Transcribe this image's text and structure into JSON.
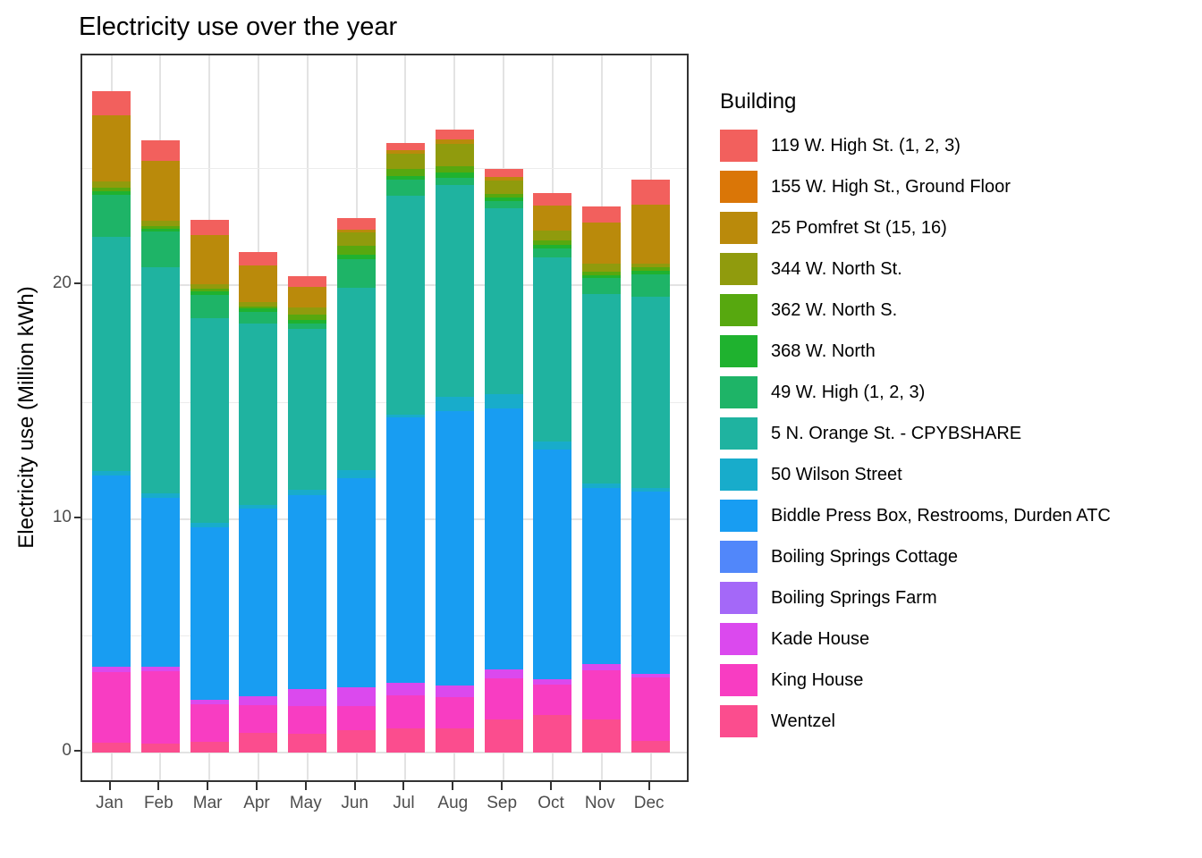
{
  "title": "Electricity use over the year",
  "y_axis_title": "Electricity use (Million kWh)",
  "legend_title": "Building",
  "chart_data": {
    "type": "bar",
    "stacked": true,
    "title": "Electricity use over the year",
    "xlabel": "",
    "ylabel": "Electricity use (Million kWh)",
    "units": "Million kWh",
    "categories": [
      "Jan",
      "Feb",
      "Mar",
      "Apr",
      "May",
      "Jun",
      "Jul",
      "Aug",
      "Sep",
      "Oct",
      "Nov",
      "Dec"
    ],
    "yticks": [
      0,
      10,
      20
    ],
    "yminor": [
      5,
      15,
      25
    ],
    "ylim": [
      -1.3,
      29.8
    ],
    "grid": true,
    "legend_position": "right",
    "legend_title": "Building",
    "stack_order": "series listed top-of-stack first; bars stack bottom-to-top in reverse order",
    "totals": [
      28.3,
      26.21,
      22.78,
      21.42,
      20.37,
      22.88,
      26.09,
      26.64,
      24.98,
      23.93,
      23.37,
      24.5
    ],
    "series": [
      {
        "name": "119 W. High St. (1, 2, 3)",
        "color": "#F2605D",
        "values": [
          1.04,
          0.89,
          0.65,
          0.59,
          0.46,
          0.52,
          0.3,
          0.42,
          0.34,
          0.54,
          0.68,
          1.05
        ]
      },
      {
        "name": "155 W. High St., Ground Floor",
        "color": "#DA7607",
        "values": [
          0,
          0,
          0,
          0,
          0,
          0,
          0,
          0,
          0,
          0,
          0,
          0
        ]
      },
      {
        "name": "25 Pomfret St (15, 16)",
        "color": "#BA8A0B",
        "values": [
          2.82,
          2.55,
          2.1,
          1.56,
          0.85,
          0.11,
          0.17,
          0.18,
          0.17,
          1.06,
          1.78,
          2.52
        ]
      },
      {
        "name": "344 W. North St.",
        "color": "#909B0D",
        "values": [
          0.28,
          0.26,
          0.2,
          0.17,
          0.32,
          0.57,
          0.63,
          0.97,
          0.57,
          0.43,
          0.33,
          0.18
        ]
      },
      {
        "name": "362 W. North S.",
        "color": "#57A80F",
        "values": [
          0.15,
          0.1,
          0.1,
          0.1,
          0.23,
          0.38,
          0.32,
          0.25,
          0.17,
          0.17,
          0.16,
          0.13
        ]
      },
      {
        "name": "368 W. North",
        "color": "#1FB22F",
        "values": [
          0.16,
          0.13,
          0.16,
          0.16,
          0.15,
          0.19,
          0.16,
          0.22,
          0.15,
          0.16,
          0.13,
          0.16
        ]
      },
      {
        "name": "49 W. High (1, 2, 3)",
        "color": "#1EB467",
        "values": [
          1.78,
          1.5,
          0.98,
          0.48,
          0.23,
          1.22,
          0.68,
          0.32,
          0.28,
          0.38,
          0.66,
          0.96
        ]
      },
      {
        "name": "5 N. Orange St. - CPYBSHARE",
        "color": "#1FB3A0",
        "values": [
          10.03,
          9.69,
          8.75,
          7.76,
          6.89,
          7.81,
          9.37,
          9.05,
          7.98,
          7.87,
          8.13,
          8.19
        ]
      },
      {
        "name": "50 Wilson Street",
        "color": "#18ACCB",
        "values": [
          0.19,
          0.19,
          0.22,
          0.17,
          0.21,
          0.35,
          0.12,
          0.61,
          0.6,
          0.34,
          0.18,
          0.15
        ]
      },
      {
        "name": "Biddle Press Box, Restrooms, Durden ATC",
        "color": "#189DF2",
        "values": [
          8.19,
          7.24,
          7.36,
          8.03,
          8.33,
          8.93,
          11.35,
          11.75,
          11.18,
          9.83,
          7.53,
          7.78
        ]
      },
      {
        "name": "Boiling Springs Cottage",
        "color": "#5187FA",
        "values": [
          0,
          0,
          0,
          0,
          0,
          0,
          0,
          0,
          0,
          0,
          0,
          0
        ]
      },
      {
        "name": "Boiling Springs Farm",
        "color": "#A468F8",
        "values": [
          0,
          0,
          0,
          0,
          0,
          0,
          0,
          0,
          0,
          0,
          0,
          0
        ]
      },
      {
        "name": "Kade House",
        "color": "#DB49EE",
        "values": [
          0.22,
          0.19,
          0.19,
          0.36,
          0.72,
          0.82,
          0.54,
          0.51,
          0.38,
          0.26,
          0.28,
          0.17
        ]
      },
      {
        "name": "King House",
        "color": "#F83DC2",
        "values": [
          3.02,
          3.09,
          1.62,
          1.21,
          1.18,
          1.02,
          1.41,
          1.32,
          1.76,
          1.3,
          2.08,
          2.72
        ]
      },
      {
        "name": "Wentzel",
        "color": "#FB4D8E",
        "values": [
          0.42,
          0.38,
          0.45,
          0.83,
          0.8,
          0.96,
          1.04,
          1.04,
          1.4,
          1.59,
          1.43,
          0.49
        ]
      }
    ]
  }
}
